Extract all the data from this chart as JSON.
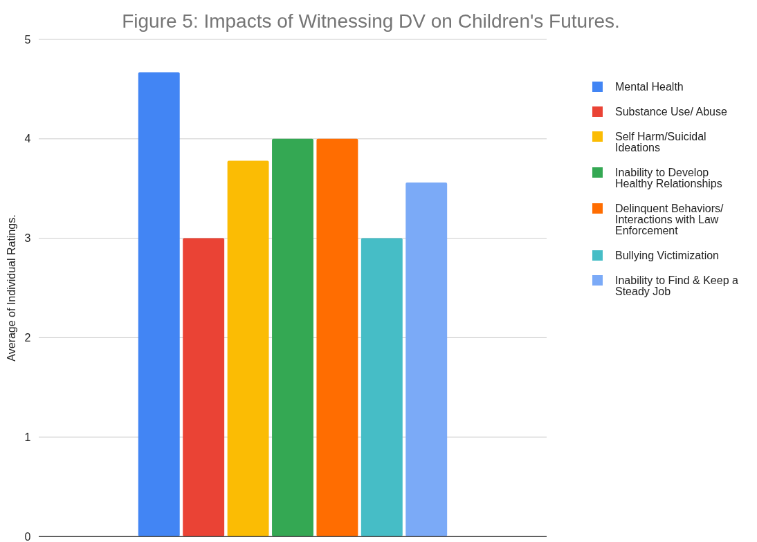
{
  "chart_data": {
    "type": "bar",
    "title": "Figure 5: Impacts of Witnessing DV on Children's Futures.",
    "ylabel": "Average of Individual Ratings.",
    "categories": [
      null
    ],
    "series": [
      {
        "name": "Mental Health",
        "color": "#4285f4",
        "values": [
          4.67
        ]
      },
      {
        "name": "Substance Use/ Abuse",
        "color": "#ea4335",
        "values": [
          3
        ]
      },
      {
        "name": "Self Harm/Suicidal Ideations",
        "color": "#fbbc04",
        "values": [
          3.78
        ]
      },
      {
        "name": "Inability to Develop Healthy Relationships",
        "color": "#34a853",
        "values": [
          4
        ]
      },
      {
        "name": "Delinquent Behaviors/ Interactions with Law Enforcement",
        "color": "#ff6d01",
        "values": [
          4
        ]
      },
      {
        "name": "Bullying Victimization",
        "color": "#46bdc6",
        "values": [
          3
        ]
      },
      {
        "name": "Inability to Find & Keep a Steady Job",
        "color": "#7baaf7",
        "values": [
          3.56
        ]
      }
    ],
    "ylim": [
      0,
      5
    ],
    "yticks": [
      0,
      1,
      2,
      3,
      4,
      5
    ],
    "grid": "y",
    "legend": "right"
  }
}
